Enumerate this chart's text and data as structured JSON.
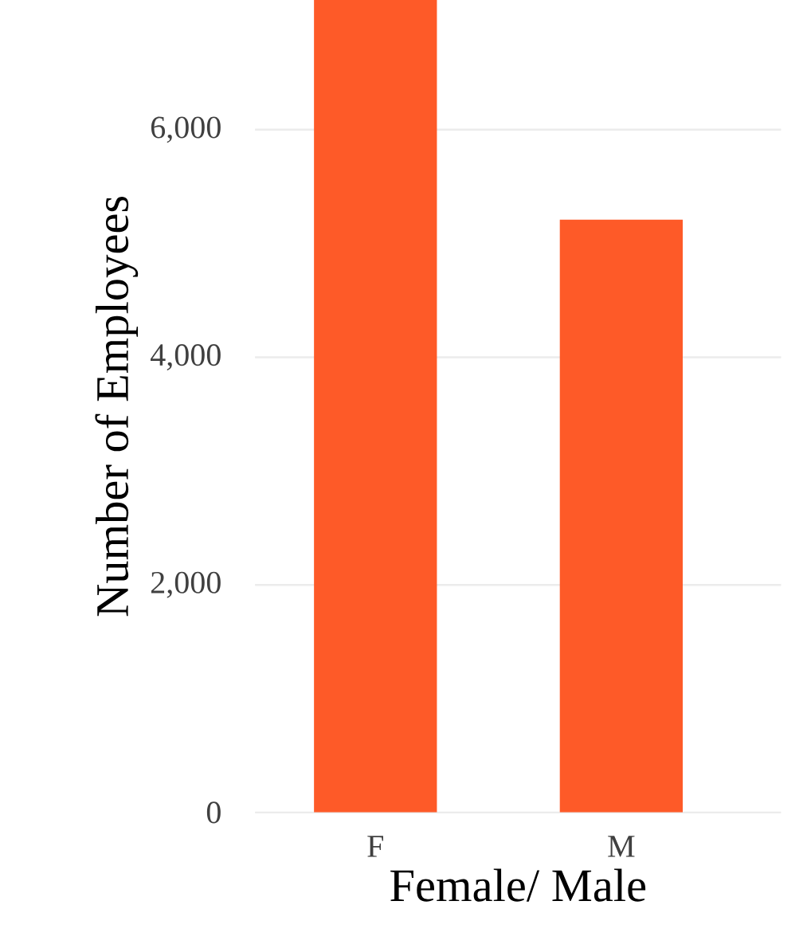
{
  "chart_data": {
    "type": "bar",
    "xlabel": "Female/ Male",
    "ylabel": "Number of Employees",
    "categories": [
      "F",
      "M"
    ],
    "values": [
      7140,
      5210
    ],
    "color": "#fe5a28",
    "ylim": [
      0,
      7140
    ],
    "yticks": [
      {
        "value": 0,
        "label": "0"
      },
      {
        "value": 2000,
        "label": "2,000"
      },
      {
        "value": 4000,
        "label": "4,000"
      },
      {
        "value": 6000,
        "label": "6,000"
      }
    ],
    "grid": "y"
  }
}
